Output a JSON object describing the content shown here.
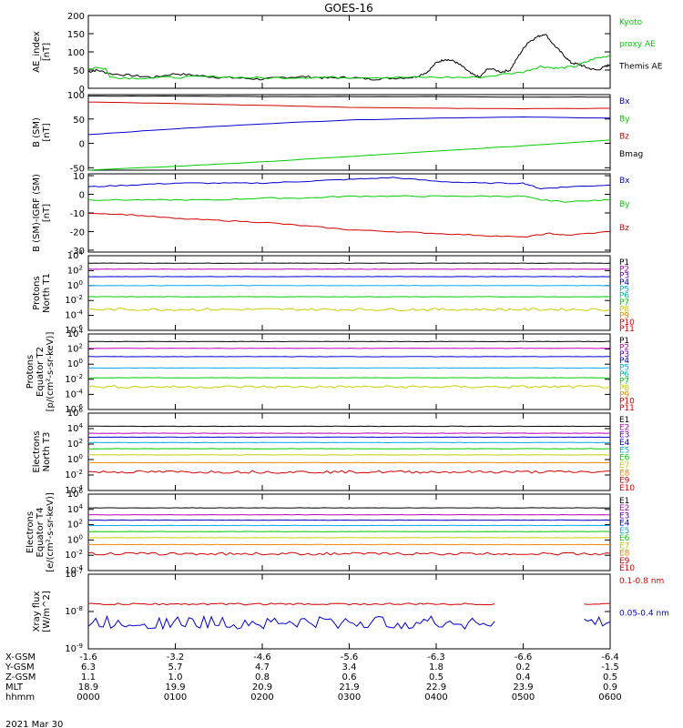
{
  "title": "GOES-16",
  "date": "2021 Mar 30",
  "colors": {
    "black": "#000000",
    "red": "#d40000",
    "green": "#00cc00",
    "blue": "#0000d0",
    "light_green": "#33dd33",
    "cyan": "#00cccc",
    "yellow": "#cccc00",
    "orange": "#ee8800",
    "magenta": "#bb00bb",
    "purple": "#6600cc",
    "sky": "#00aaee",
    "teal": "#00bb99"
  },
  "chart_data": [
    {
      "type": "line",
      "id": "ae",
      "ylabel": [
        "AE_index",
        "[nT]"
      ],
      "ylim": [
        0,
        200
      ],
      "yticks": [
        "0",
        "50",
        "100",
        "150",
        "200"
      ],
      "legend": [
        {
          "name": "Kyoto",
          "color": "#00cc00"
        },
        {
          "name": "proxy AE",
          "color": "#00cc00"
        },
        {
          "name": "Themis AE",
          "color": "#000000"
        }
      ],
      "series": [
        {
          "name": "Themis AE",
          "color": "#000000",
          "x": [
            0,
            0.1,
            0.25,
            0.5,
            0.75,
            1.0,
            1.25,
            1.5,
            1.75,
            2.0,
            2.25,
            2.5,
            2.75,
            3.0,
            3.25,
            3.5,
            3.75,
            3.9,
            4.0,
            4.1,
            4.2,
            4.3,
            4.4,
            4.5,
            4.6,
            4.75,
            4.85,
            4.95,
            5.05,
            5.15,
            5.25,
            5.35,
            5.45,
            5.55,
            5.65,
            5.75,
            5.85,
            5.95,
            6.0
          ],
          "y": [
            45,
            50,
            40,
            35,
            30,
            40,
            35,
            30,
            28,
            25,
            30,
            32,
            28,
            30,
            25,
            28,
            30,
            45,
            70,
            80,
            75,
            60,
            40,
            30,
            55,
            45,
            50,
            90,
            125,
            140,
            150,
            120,
            95,
            70,
            65,
            55,
            50,
            60,
            65
          ]
        },
        {
          "name": "Kyoto proxy AE",
          "color": "#00cc00",
          "x": [
            0,
            0.2,
            0.25,
            0.5,
            1.0,
            1.5,
            2.0,
            2.5,
            3.0,
            3.5,
            4.0,
            4.5,
            5.0,
            5.2,
            5.4,
            5.6,
            5.8,
            6.0
          ],
          "y": [
            55,
            55,
            30,
            28,
            30,
            32,
            28,
            30,
            30,
            30,
            30,
            30,
            45,
            60,
            55,
            60,
            80,
            90
          ]
        }
      ]
    },
    {
      "type": "line",
      "id": "bsm",
      "ylabel": [
        "B (SM)",
        "[nT]"
      ],
      "ylim": [
        -55,
        100
      ],
      "yticks": [
        "-50",
        "0",
        "50",
        "100"
      ],
      "legend": [
        {
          "name": "Bx",
          "color": "#0000d0"
        },
        {
          "name": "By",
          "color": "#00cc00"
        },
        {
          "name": "Bz",
          "color": "#d40000"
        },
        {
          "name": "Bmag",
          "color": "#000000"
        }
      ],
      "series": [
        {
          "name": "Bx",
          "color": "#0000d0",
          "x": [
            0,
            1,
            2,
            3,
            4,
            5,
            6
          ],
          "y": [
            18,
            30,
            40,
            48,
            52,
            54,
            52
          ]
        },
        {
          "name": "By",
          "color": "#00cc00",
          "x": [
            0,
            1,
            2,
            3,
            4,
            5,
            6
          ],
          "y": [
            -55,
            -47,
            -38,
            -27,
            -16,
            -5,
            7
          ]
        },
        {
          "name": "Bz",
          "color": "#d40000",
          "x": [
            0,
            1,
            2,
            3,
            4,
            5,
            6
          ],
          "y": [
            85,
            82,
            78,
            74,
            72,
            71,
            72
          ]
        },
        {
          "name": "Bmag",
          "color": "#000000",
          "x": [
            0,
            1,
            2,
            3,
            4,
            5,
            6
          ],
          "y": [
            97,
            97,
            96,
            96,
            96,
            95,
            95
          ]
        }
      ]
    },
    {
      "type": "line",
      "id": "bigrf",
      "ylabel": [
        "B (SM)-IGRF (SM)",
        "[nT]"
      ],
      "ylim": [
        -31,
        11
      ],
      "yticks": [
        "-30",
        "-20",
        "-10",
        "0",
        "10"
      ],
      "legend": [
        {
          "name": "Bx",
          "color": "#0000d0"
        },
        {
          "name": "By",
          "color": "#00cc00"
        },
        {
          "name": "Bz",
          "color": "#d40000"
        }
      ],
      "series": [
        {
          "name": "Bx",
          "color": "#0000d0",
          "x": [
            0,
            0.5,
            1,
            1.5,
            2,
            2.5,
            3,
            3.5,
            4,
            4.5,
            5,
            5.2,
            5.5,
            6
          ],
          "y": [
            4,
            5,
            6,
            6,
            6,
            7,
            8,
            9,
            7,
            6,
            6,
            3,
            4,
            5
          ]
        },
        {
          "name": "By",
          "color": "#00cc00",
          "x": [
            0,
            0.5,
            1,
            1.5,
            2,
            2.5,
            3,
            3.5,
            4,
            4.5,
            5,
            5.2,
            5.5,
            6
          ],
          "y": [
            -3,
            -3,
            -3,
            -3,
            -2,
            -2,
            -1,
            -1,
            -1,
            -1,
            -1,
            -3,
            -4,
            -3
          ]
        },
        {
          "name": "Bz",
          "color": "#d40000",
          "x": [
            0,
            0.5,
            1,
            1.5,
            2,
            2.5,
            3,
            3.5,
            4,
            4.5,
            5,
            5.3,
            5.5,
            6
          ],
          "y": [
            -10,
            -11,
            -13,
            -14,
            -15,
            -17,
            -19,
            -20,
            -21,
            -22,
            -23,
            -21,
            -22,
            -20
          ]
        }
      ]
    },
    {
      "type": "line",
      "id": "prot_t1",
      "ylabel": [
        "Protons",
        "North T1"
      ],
      "log": true,
      "ylim_exp": [
        -6,
        4
      ],
      "yticks": [
        {
          "e": 4
        },
        {
          "e": 2
        },
        {
          "e": 0
        },
        {
          "e": -2
        },
        {
          "e": -4
        },
        {
          "e": -6
        }
      ],
      "legend": [
        {
          "name": "P1",
          "color": "#000000"
        },
        {
          "name": "P2",
          "color": "#bb00bb"
        },
        {
          "name": "P3",
          "color": "#6600cc"
        },
        {
          "name": "P4",
          "color": "#0000d0"
        },
        {
          "name": "P5",
          "color": "#00aaee"
        },
        {
          "name": "P6",
          "color": "#00bb99"
        },
        {
          "name": "P7",
          "color": "#00cc00"
        },
        {
          "name": "P8",
          "color": "#cccc00"
        },
        {
          "name": "P9",
          "color": "#ee8800"
        },
        {
          "name": "P10",
          "color": "#d40000"
        },
        {
          "name": "P11",
          "color": "#d40000"
        }
      ],
      "series": [
        {
          "name": "P1",
          "color": "#000000",
          "exp": 3.0
        },
        {
          "name": "P2",
          "color": "#bb00bb",
          "exp": 2.2
        },
        {
          "name": "P3",
          "color": "#0000d0",
          "exp": 1.2
        },
        {
          "name": "P4",
          "color": "#00aaee",
          "exp": 0.0
        },
        {
          "name": "P6",
          "color": "#00cc00",
          "exp": -1.5
        },
        {
          "name": "P8",
          "color": "#cccc00",
          "exp": -3.2,
          "noisy": true
        }
      ]
    },
    {
      "type": "line",
      "id": "prot_t2",
      "ylabel": [
        "Protons",
        "Equator T2",
        "[p/(cm²-s-sr-keV)]"
      ],
      "log": true,
      "ylim_exp": [
        -6,
        4
      ],
      "yticks": [
        {
          "e": 4
        },
        {
          "e": 2
        },
        {
          "e": 0
        },
        {
          "e": -2
        },
        {
          "e": -4
        },
        {
          "e": -6
        }
      ],
      "legend": [
        {
          "name": "P1",
          "color": "#000000"
        },
        {
          "name": "P2",
          "color": "#bb00bb"
        },
        {
          "name": "P3",
          "color": "#6600cc"
        },
        {
          "name": "P4",
          "color": "#0000d0"
        },
        {
          "name": "P5",
          "color": "#00aaee"
        },
        {
          "name": "P6",
          "color": "#00bb99"
        },
        {
          "name": "P7",
          "color": "#00cc00"
        },
        {
          "name": "P8",
          "color": "#cccc00"
        },
        {
          "name": "P9",
          "color": "#ee8800"
        },
        {
          "name": "P10",
          "color": "#d40000"
        },
        {
          "name": "P11",
          "color": "#d40000"
        }
      ],
      "series": [
        {
          "name": "P1",
          "color": "#000000",
          "exp": 3.0
        },
        {
          "name": "P2",
          "color": "#bb00bb",
          "exp": 2.1
        },
        {
          "name": "P3",
          "color": "#0000d0",
          "exp": 1.0
        },
        {
          "name": "P4",
          "color": "#00aaee",
          "exp": -0.5
        },
        {
          "name": "P6",
          "color": "#00cc00",
          "exp": -1.8
        },
        {
          "name": "P8",
          "color": "#cccc00",
          "exp": -3.0,
          "noisy": true
        }
      ]
    },
    {
      "type": "line",
      "id": "elec_t3",
      "ylabel": [
        "Electrons",
        "North T3"
      ],
      "log": true,
      "ylim_exp": [
        -4,
        6
      ],
      "yticks": [
        {
          "e": 6
        },
        {
          "e": 4
        },
        {
          "e": 2
        },
        {
          "e": 0
        },
        {
          "e": -2
        },
        {
          "e": -4
        }
      ],
      "legend": [
        {
          "name": "E1",
          "color": "#000000"
        },
        {
          "name": "E2",
          "color": "#bb00bb"
        },
        {
          "name": "E3",
          "color": "#6600cc"
        },
        {
          "name": "E4",
          "color": "#0000d0"
        },
        {
          "name": "E5",
          "color": "#00aaee"
        },
        {
          "name": "E6",
          "color": "#00cc00"
        },
        {
          "name": "E7",
          "color": "#cccc00"
        },
        {
          "name": "E8",
          "color": "#ee8800"
        },
        {
          "name": "E9",
          "color": "#d40000"
        },
        {
          "name": "E10",
          "color": "#d40000"
        }
      ],
      "series": [
        {
          "name": "E1",
          "color": "#000000",
          "exp": 4.3
        },
        {
          "name": "E2",
          "color": "#bb00bb",
          "exp": 3.4
        },
        {
          "name": "E3",
          "color": "#0000d0",
          "exp": 2.9
        },
        {
          "name": "E4",
          "color": "#00aaee",
          "exp": 2.2
        },
        {
          "name": "E5",
          "color": "#00cc00",
          "exp": 1.4
        },
        {
          "name": "E6",
          "color": "#cccc00",
          "exp": 0.6
        },
        {
          "name": "E8",
          "color": "#ee8800",
          "exp": -0.4
        },
        {
          "name": "E9",
          "color": "#d40000",
          "exp": -1.6,
          "noisy": true
        }
      ]
    },
    {
      "type": "line",
      "id": "elec_t4",
      "ylabel": [
        "Electrons",
        "Equator T4",
        "[e/(cm²-s-sr-keV)]"
      ],
      "log": true,
      "ylim_exp": [
        -4,
        6
      ],
      "yticks": [
        {
          "e": 6
        },
        {
          "e": 4
        },
        {
          "e": 2
        },
        {
          "e": 0
        },
        {
          "e": -2
        },
        {
          "e": -4
        }
      ],
      "legend": [
        {
          "name": "E1",
          "color": "#000000"
        },
        {
          "name": "E2",
          "color": "#bb00bb"
        },
        {
          "name": "E3",
          "color": "#6600cc"
        },
        {
          "name": "E4",
          "color": "#0000d0"
        },
        {
          "name": "E5",
          "color": "#00aaee"
        },
        {
          "name": "E6",
          "color": "#00cc00"
        },
        {
          "name": "E7",
          "color": "#cccc00"
        },
        {
          "name": "E8",
          "color": "#ee8800"
        },
        {
          "name": "E9",
          "color": "#d40000"
        },
        {
          "name": "E10",
          "color": "#d40000"
        }
      ],
      "series": [
        {
          "name": "E1",
          "color": "#000000",
          "exp": 4.2
        },
        {
          "name": "E2",
          "color": "#bb00bb",
          "exp": 3.3
        },
        {
          "name": "E3",
          "color": "#0000d0",
          "exp": 2.6
        },
        {
          "name": "E4",
          "color": "#00aaee",
          "exp": 1.9
        },
        {
          "name": "E5",
          "color": "#00cc00",
          "exp": 1.1
        },
        {
          "name": "E6",
          "color": "#cccc00",
          "exp": 0.3
        },
        {
          "name": "E8",
          "color": "#ee8800",
          "exp": -0.6
        },
        {
          "name": "E9",
          "color": "#d40000",
          "exp": -1.8,
          "noisy": true
        }
      ]
    },
    {
      "type": "line",
      "id": "xray",
      "ylabel": [
        "Xray flux",
        "[W/m^2]"
      ],
      "log": true,
      "ylim_exp": [
        -9,
        -7
      ],
      "yticks": [
        {
          "e": -7
        },
        {
          "e": -8
        },
        {
          "e": -9
        }
      ],
      "legend": [
        {
          "name": "0.1-0.8 nm",
          "color": "#d40000"
        },
        {
          "name": "0.05-0.4 nm",
          "color": "#0000d0"
        }
      ],
      "series": [
        {
          "name": "0.1-0.8 nm",
          "color": "#d40000",
          "exp": -7.8,
          "gap": [
            4.7,
            5.68
          ]
        },
        {
          "name": "0.05-0.4 nm",
          "color": "#0000d0",
          "exp": -8.3,
          "gap": [
            4.7,
            5.68
          ],
          "noisy": true
        }
      ]
    }
  ],
  "x_axis": {
    "xlim": [
      0,
      6
    ],
    "row_labels": [
      "X-GSM",
      "Y-GSM",
      "Z-GSM",
      "MLT",
      "hhmm"
    ],
    "columns": [
      [
        "-1.6",
        "6.3",
        "1.1",
        "18.9",
        "0000"
      ],
      [
        "-3.2",
        "5.7",
        "1.0",
        "19.9",
        "0100"
      ],
      [
        "-4.6",
        "4.7",
        "0.8",
        "20.9",
        "0200"
      ],
      [
        "-5.6",
        "3.4",
        "0.6",
        "21.9",
        "0300"
      ],
      [
        "-6.3",
        "1.8",
        "0.5",
        "22.9",
        "0400"
      ],
      [
        "-6.6",
        "0.2",
        "0.4",
        "23.9",
        "0500"
      ],
      [
        "-6.4",
        "-1.5",
        "0.5",
        "0.9",
        "0600"
      ]
    ]
  }
}
